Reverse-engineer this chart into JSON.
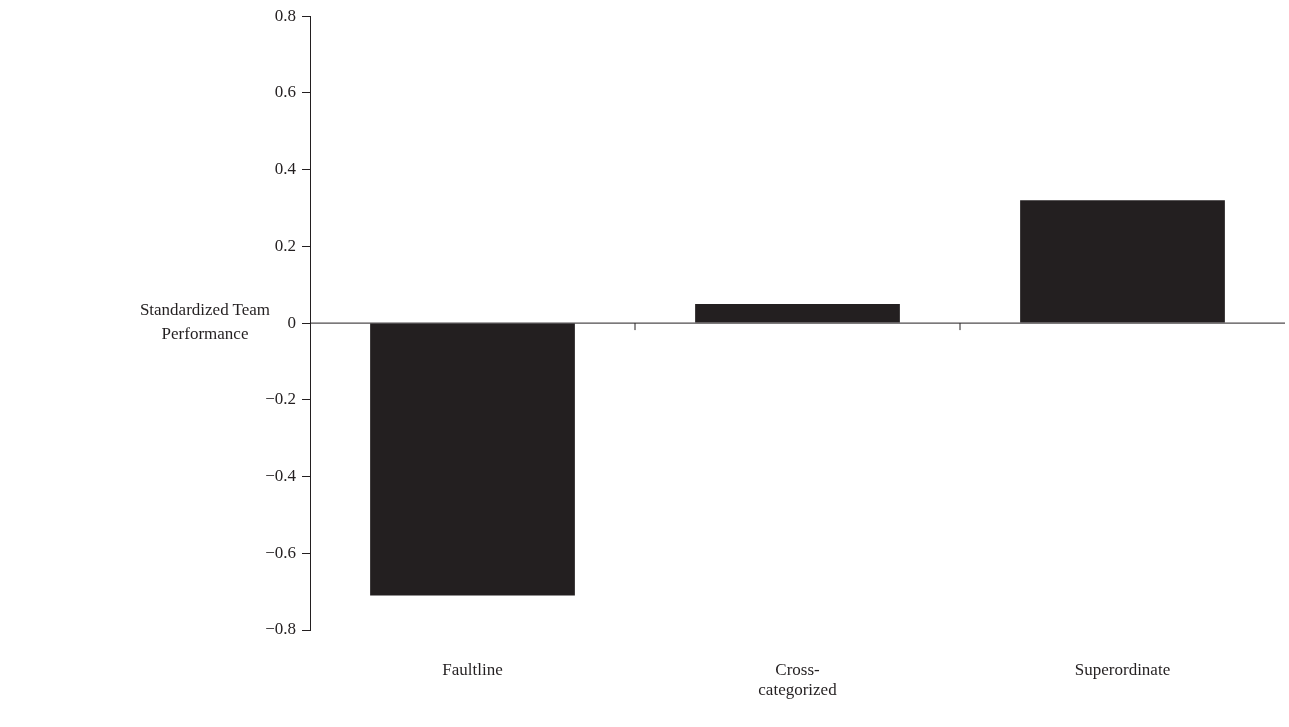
{
  "chart_data": {
    "type": "bar",
    "ylabel": "Standardized Team Performance",
    "categories": [
      "Faultline",
      "Cross-categorized",
      "Superordinate"
    ],
    "values": [
      -0.71,
      0.05,
      0.32
    ],
    "color": "#231f20",
    "ylim": [
      -0.8,
      0.8
    ],
    "yticks": [
      {
        "value": -0.8,
        "label": "−0.8"
      },
      {
        "value": -0.6,
        "label": "−0.6"
      },
      {
        "value": -0.4,
        "label": "−0.4"
      },
      {
        "value": -0.2,
        "label": "−0.2"
      },
      0,
      0.2,
      0.4,
      0.6,
      0.8
    ]
  }
}
